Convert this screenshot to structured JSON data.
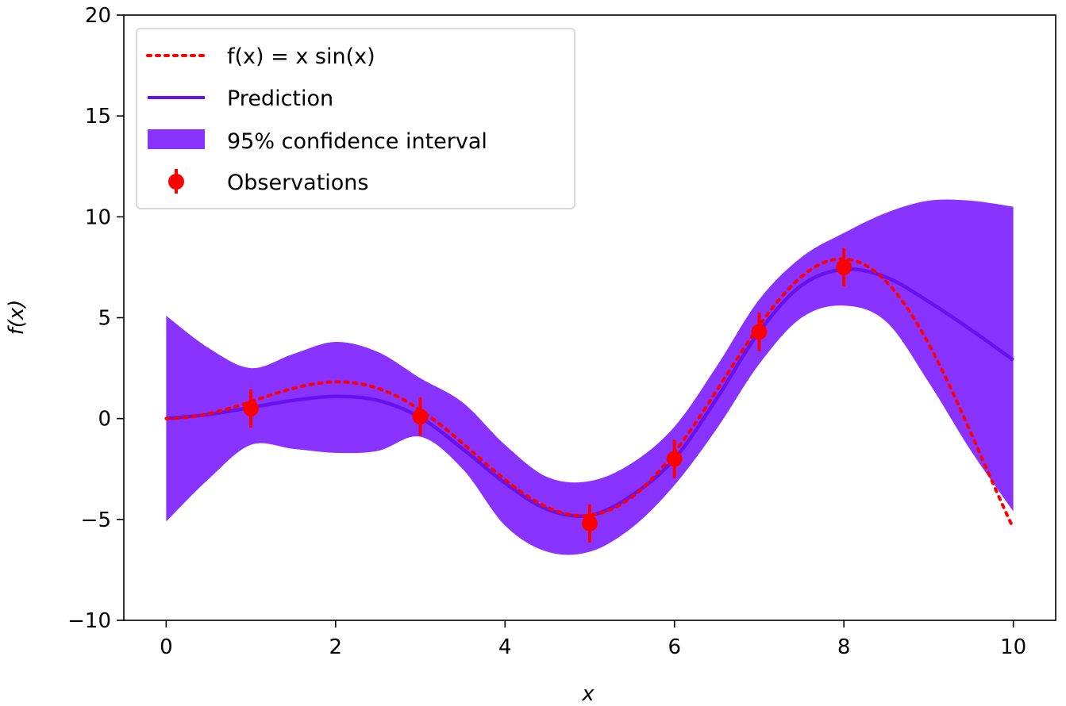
{
  "chart_data": {
    "type": "line",
    "xlabel": "x",
    "ylabel": "f(x)",
    "xlim": [
      -0.5,
      10.5
    ],
    "ylim": [
      -10,
      20
    ],
    "x_ticks": [
      "0",
      "2",
      "4",
      "6",
      "8",
      "10"
    ],
    "x_tick_values": [
      0,
      2,
      4,
      6,
      8,
      10
    ],
    "y_ticks": [
      "−10",
      "−5",
      "0",
      "5",
      "10",
      "15",
      "20"
    ],
    "y_tick_values": [
      -10,
      -5,
      0,
      5,
      10,
      15,
      20
    ],
    "grid": false,
    "legend_position": "top-left",
    "true_function": {
      "label": "f(x) = x sin(x)",
      "color": "#ff0000",
      "style": "dotted",
      "x_start": 0,
      "x_end": 10
    },
    "prediction": {
      "label": "Prediction",
      "color": "#6611ee",
      "x": [
        0,
        0.5,
        1,
        1.5,
        2,
        2.5,
        3,
        3.5,
        4,
        4.5,
        5,
        5.5,
        6,
        6.5,
        7,
        7.5,
        8,
        8.5,
        9,
        9.5,
        10
      ],
      "y": [
        0.0,
        0.2,
        0.55,
        0.9,
        1.1,
        0.9,
        0.05,
        -1.5,
        -3.2,
        -4.5,
        -4.8,
        -3.8,
        -2.0,
        1.0,
        4.3,
        6.6,
        7.4,
        7.0,
        5.8,
        4.4,
        2.9
      ]
    },
    "confidence_interval": {
      "label": "95% confidence interval",
      "color": "#8833ff",
      "x": [
        0,
        0.5,
        1,
        1.5,
        2,
        2.5,
        3,
        3.5,
        4,
        4.5,
        5,
        5.5,
        6,
        6.5,
        7,
        7.5,
        8,
        8.5,
        9,
        9.5,
        10
      ],
      "upper": [
        5.1,
        3.5,
        2.5,
        3.2,
        3.8,
        3.3,
        2.0,
        0.8,
        -1.3,
        -2.9,
        -3.1,
        -2.2,
        -0.4,
        2.6,
        5.9,
        8.0,
        9.2,
        10.2,
        10.8,
        10.8,
        10.5
      ],
      "lower": [
        -5.1,
        -3.0,
        -1.3,
        -1.5,
        -1.7,
        -1.6,
        -0.9,
        -2.5,
        -5.3,
        -6.6,
        -6.6,
        -5.4,
        -3.3,
        -0.5,
        2.7,
        5.0,
        5.6,
        4.8,
        1.8,
        -1.6,
        -4.6
      ]
    },
    "observations": {
      "label": "Observations",
      "color": "#ff0000",
      "x": [
        1,
        3,
        5,
        6,
        7,
        8
      ],
      "y": [
        0.5,
        0.1,
        -5.2,
        -2.0,
        4.3,
        7.5
      ],
      "error": 0.95
    }
  }
}
